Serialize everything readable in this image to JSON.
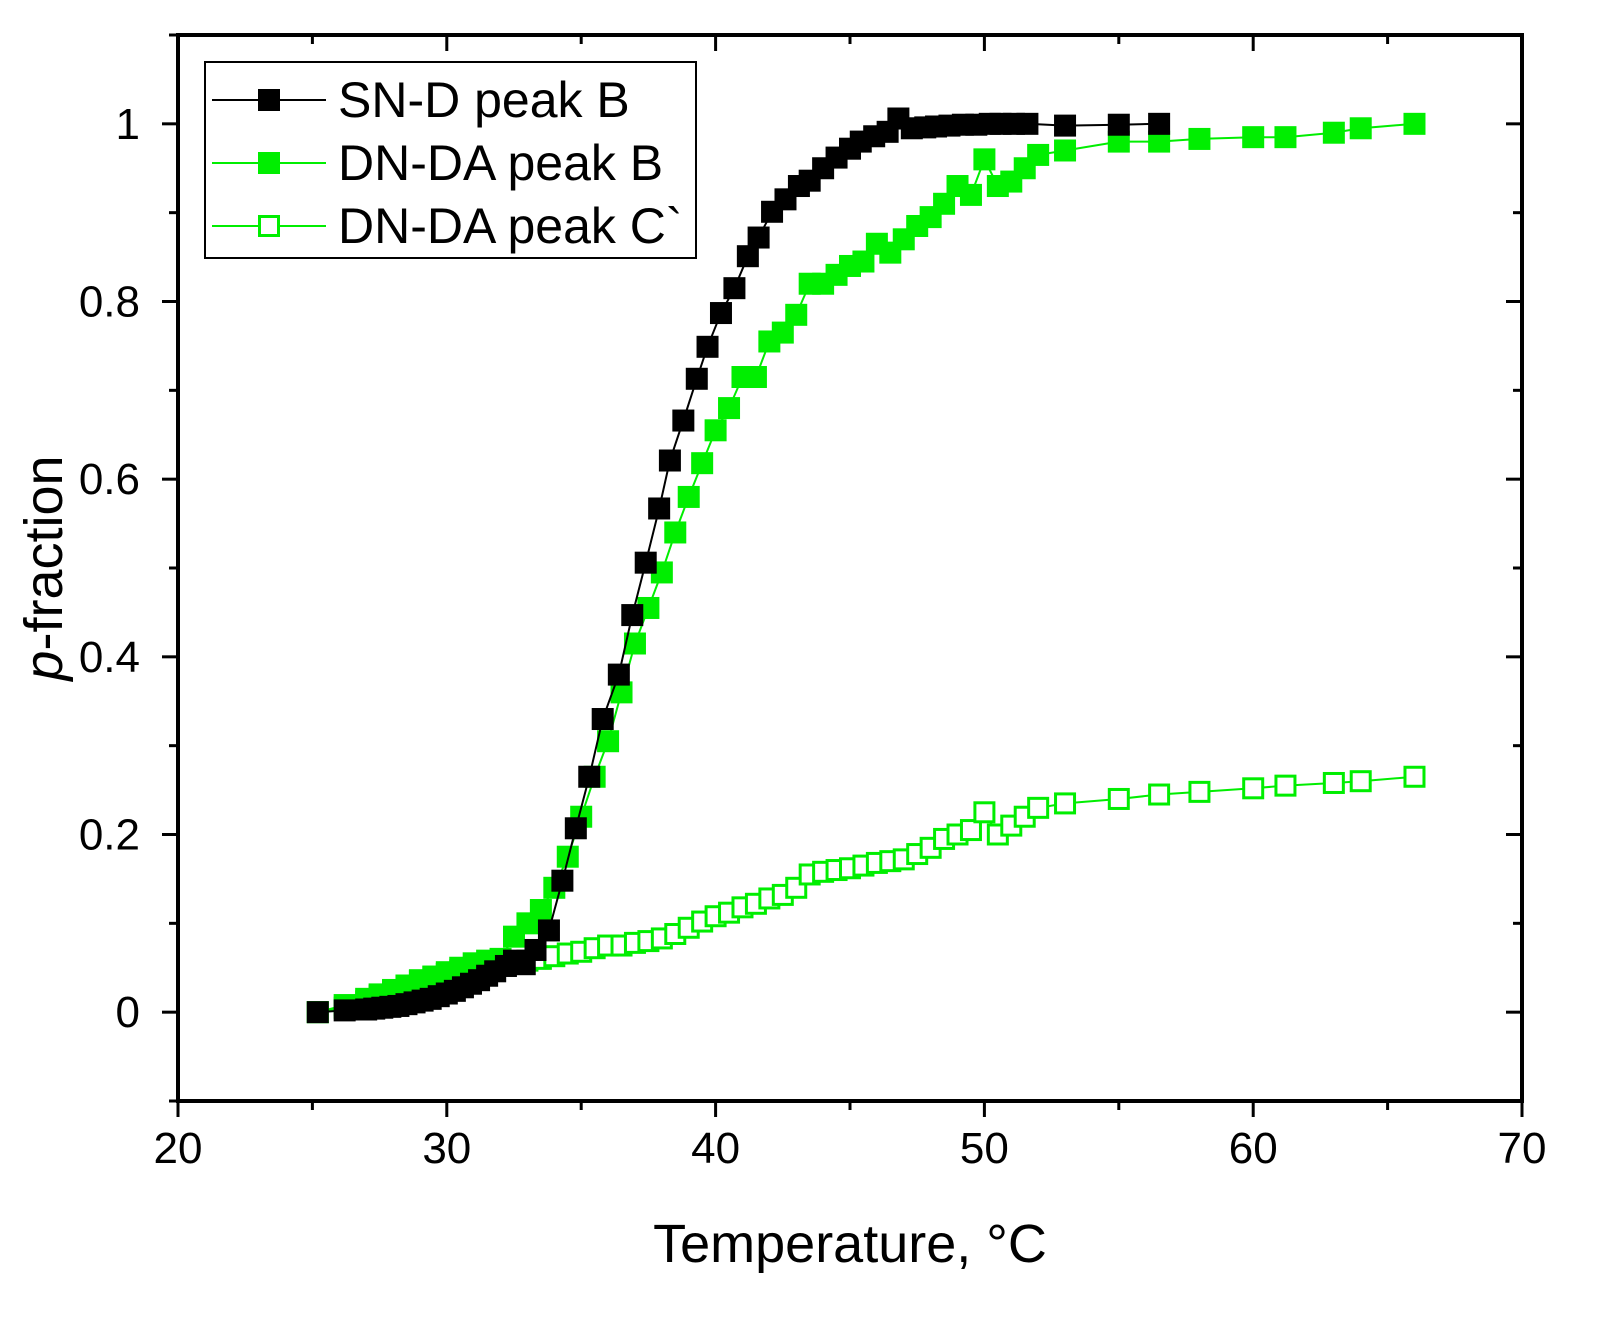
{
  "chart_data": {
    "type": "scatter",
    "title": "",
    "xlabel": "Temperature, °C",
    "ylabel_symbol": "p",
    "ylabel_suffix": "-fraction",
    "xlim": [
      20,
      70
    ],
    "ylim": [
      -0.1,
      1.1
    ],
    "xticks": [
      20,
      30,
      40,
      50,
      60,
      70
    ],
    "xtick_labels": [
      "20",
      "30",
      "40",
      "50",
      "60",
      "70"
    ],
    "yticks": [
      0,
      0.2,
      0.4,
      0.6,
      0.8,
      1
    ],
    "ytick_labels": [
      "0",
      "0.2",
      "0.4",
      "0.6",
      "0.8",
      "1"
    ],
    "grid": false,
    "legend_position": "top-left",
    "series": [
      {
        "name": "SN-D peak B",
        "marker": "filled-square",
        "color": "#000000",
        "x": [
          25.2,
          26.2,
          27.0,
          27.3,
          27.6,
          27.9,
          28.2,
          28.5,
          28.8,
          29.1,
          29.4,
          29.7,
          30.0,
          30.3,
          30.6,
          30.9,
          31.2,
          31.5,
          31.8,
          32.2,
          32.5,
          32.9,
          33.3,
          33.8,
          34.3,
          34.8,
          35.3,
          35.8,
          36.4,
          36.9,
          37.4,
          37.9,
          38.3,
          38.8,
          39.3,
          39.7,
          40.2,
          40.7,
          41.2,
          41.6,
          42.1,
          42.6,
          43.1,
          43.5,
          44.0,
          44.5,
          45.0,
          45.4,
          45.9,
          46.4,
          46.8,
          47.3,
          47.8,
          48.2,
          48.7,
          49.2,
          49.7,
          50.2,
          50.6,
          51.1,
          51.6,
          53.0,
          55.0,
          56.5
        ],
        "y": [
          0.0,
          0.002,
          0.003,
          0.004,
          0.005,
          0.006,
          0.007,
          0.009,
          0.011,
          0.013,
          0.015,
          0.018,
          0.021,
          0.024,
          0.028,
          0.032,
          0.036,
          0.041,
          0.046,
          0.052,
          0.058,
          0.054,
          0.07,
          0.092,
          0.148,
          0.207,
          0.265,
          0.33,
          0.38,
          0.447,
          0.506,
          0.567,
          0.621,
          0.666,
          0.713,
          0.749,
          0.787,
          0.815,
          0.851,
          0.872,
          0.901,
          0.915,
          0.93,
          0.936,
          0.95,
          0.962,
          0.972,
          0.98,
          0.986,
          0.991,
          1.006,
          0.995,
          0.996,
          0.997,
          0.998,
          0.999,
          0.999,
          1.0,
          1.0,
          1.0,
          1.0,
          0.998,
          0.999,
          1.0
        ]
      },
      {
        "name": "DN-DA peak B",
        "marker": "filled-square",
        "color": "#00ee00",
        "x": [
          25.2,
          26.2,
          27.0,
          27.5,
          28.0,
          28.5,
          29.0,
          29.5,
          30.0,
          30.5,
          31.0,
          31.5,
          32.0,
          32.5,
          33.0,
          33.5,
          34.0,
          34.5,
          35.0,
          35.5,
          36.0,
          36.5,
          37.0,
          37.5,
          38.0,
          38.5,
          39.0,
          39.5,
          40.0,
          40.5,
          41.0,
          41.5,
          42.0,
          42.5,
          43.0,
          43.5,
          44.0,
          44.5,
          45.0,
          45.5,
          46.0,
          46.5,
          47.0,
          47.5,
          48.0,
          48.5,
          49.0,
          49.5,
          50.0,
          50.5,
          51.0,
          51.5,
          52.0,
          53.0,
          55.0,
          56.5,
          58.0,
          60.0,
          61.2,
          63.0,
          64.0,
          66.0
        ],
        "y": [
          0.0,
          0.005,
          0.012,
          0.018,
          0.024,
          0.03,
          0.036,
          0.04,
          0.045,
          0.05,
          0.055,
          0.058,
          0.06,
          0.085,
          0.1,
          0.115,
          0.14,
          0.175,
          0.22,
          0.265,
          0.305,
          0.36,
          0.415,
          0.455,
          0.495,
          0.54,
          0.58,
          0.618,
          0.655,
          0.68,
          0.715,
          0.715,
          0.755,
          0.765,
          0.785,
          0.82,
          0.82,
          0.83,
          0.84,
          0.845,
          0.865,
          0.855,
          0.87,
          0.885,
          0.895,
          0.91,
          0.93,
          0.92,
          0.96,
          0.93,
          0.935,
          0.95,
          0.965,
          0.97,
          0.98,
          0.98,
          0.983,
          0.985,
          0.985,
          0.99,
          0.995,
          1.0
        ]
      },
      {
        "name": "DN-DA peak C`",
        "marker": "open-square",
        "color": "#00ee00",
        "x": [
          25.2,
          26.2,
          27.0,
          27.5,
          28.0,
          28.5,
          29.0,
          29.5,
          30.0,
          30.5,
          31.0,
          31.5,
          32.0,
          32.5,
          33.0,
          33.5,
          34.0,
          34.5,
          35.0,
          35.5,
          36.0,
          36.5,
          37.0,
          37.5,
          38.0,
          38.5,
          39.0,
          39.5,
          40.0,
          40.5,
          41.0,
          41.5,
          42.0,
          42.5,
          43.0,
          43.5,
          44.0,
          44.5,
          45.0,
          45.5,
          46.0,
          46.5,
          47.0,
          47.5,
          48.0,
          48.5,
          49.0,
          49.5,
          50.0,
          50.5,
          51.0,
          51.5,
          52.0,
          53.0,
          55.0,
          56.5,
          58.0,
          60.0,
          61.2,
          63.0,
          64.0,
          66.0
        ],
        "y": [
          0.0,
          0.008,
          0.015,
          0.02,
          0.025,
          0.03,
          0.035,
          0.04,
          0.043,
          0.047,
          0.05,
          0.053,
          0.055,
          0.057,
          0.058,
          0.06,
          0.063,
          0.066,
          0.068,
          0.072,
          0.075,
          0.075,
          0.078,
          0.08,
          0.083,
          0.088,
          0.095,
          0.102,
          0.108,
          0.112,
          0.118,
          0.122,
          0.128,
          0.132,
          0.14,
          0.155,
          0.158,
          0.16,
          0.162,
          0.165,
          0.168,
          0.17,
          0.172,
          0.178,
          0.185,
          0.195,
          0.2,
          0.205,
          0.225,
          0.2,
          0.21,
          0.22,
          0.23,
          0.235,
          0.24,
          0.245,
          0.248,
          0.252,
          0.255,
          0.258,
          0.26,
          0.265
        ]
      }
    ]
  }
}
